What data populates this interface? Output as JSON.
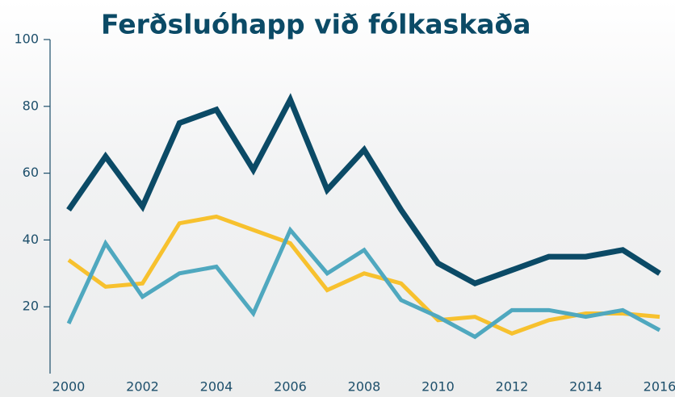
{
  "chart_data": {
    "type": "line",
    "title": "Ferðsluóhapp við fólkaskaða",
    "x": [
      2000,
      2001,
      2002,
      2003,
      2004,
      2005,
      2006,
      2007,
      2008,
      2009,
      2010,
      2011,
      2012,
      2013,
      2014,
      2015,
      2016
    ],
    "xlim": [
      2000,
      2016
    ],
    "xticks": [
      2000,
      2002,
      2004,
      2006,
      2008,
      2010,
      2012,
      2014,
      2016
    ],
    "ylim": [
      0,
      100
    ],
    "yticks": [
      20,
      40,
      60,
      80,
      100
    ],
    "series": [
      {
        "color": "#0b4a66",
        "values": [
          49,
          65,
          50,
          75,
          79,
          61,
          82,
          55,
          67,
          49,
          33,
          27,
          31,
          35,
          35,
          37,
          30
        ]
      },
      {
        "color": "#f7c12e",
        "values": [
          34,
          26,
          27,
          45,
          47,
          43,
          39,
          25,
          30,
          27,
          16,
          17,
          12,
          16,
          18,
          18,
          17
        ]
      },
      {
        "color": "#4fa8bf",
        "values": [
          15,
          39,
          23,
          30,
          32,
          18,
          43,
          30,
          37,
          22,
          17,
          11,
          19,
          19,
          17,
          19,
          13
        ]
      }
    ]
  }
}
